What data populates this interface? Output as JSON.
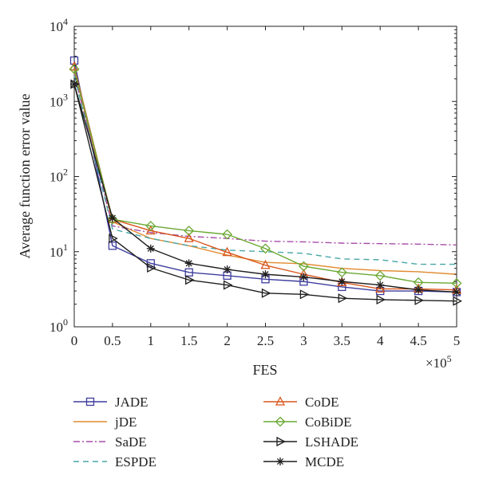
{
  "chart_data": {
    "type": "line",
    "title": "",
    "xlabel": "FES",
    "ylabel": "Average function error value",
    "x_multiplier": "×10^5",
    "x_multiplier_base": "×10",
    "x_multiplier_exp": "5",
    "xlim": [
      0,
      5
    ],
    "ylim": [
      1,
      10000
    ],
    "yscale": "log",
    "x_ticks": [
      "0",
      "0.5",
      "1",
      "1.5",
      "2",
      "2.5",
      "3",
      "3.5",
      "4",
      "4.5",
      "5"
    ],
    "y_ticks": [
      {
        "value": 1,
        "base": "10",
        "exp": "0"
      },
      {
        "value": 10,
        "base": "10",
        "exp": "1"
      },
      {
        "value": 100,
        "base": "10",
        "exp": "2"
      },
      {
        "value": 1000,
        "base": "10",
        "exp": "3"
      },
      {
        "value": 10000,
        "base": "10",
        "exp": "4"
      }
    ],
    "grid": false,
    "legend_position": "below",
    "x": [
      0,
      0.5,
      1,
      1.5,
      2,
      2.5,
      3,
      3.5,
      4,
      4.5,
      5
    ],
    "series": [
      {
        "name": "JADE",
        "color": "#3d3d9e",
        "dash": "",
        "marker": "square",
        "values": [
          3500,
          12,
          7,
          5.3,
          4.8,
          4.3,
          4.0,
          3.4,
          3.0,
          3.0,
          2.9
        ]
      },
      {
        "name": "jDE",
        "color": "#e08a2e",
        "dash": "",
        "marker": "none",
        "values": [
          2600,
          25,
          15,
          12,
          9,
          7.2,
          6.9,
          6.0,
          5.6,
          5.4,
          5.0
        ]
      },
      {
        "name": "SaDE",
        "color": "#a64da6",
        "dash": "8,3,2,3",
        "marker": "none",
        "values": [
          2300,
          22,
          18,
          16,
          15,
          13.8,
          13.5,
          13.0,
          12.8,
          12.6,
          12.3
        ]
      },
      {
        "name": "ESPDE",
        "color": "#49a6a6",
        "dash": "7,5",
        "marker": "none",
        "values": [
          2200,
          20,
          15,
          12,
          10.5,
          10,
          9.5,
          8.0,
          7.8,
          6.8,
          6.8
        ]
      },
      {
        "name": "CoDE",
        "color": "#d9561c",
        "dash": "",
        "marker": "triangle-up",
        "values": [
          2900,
          27,
          19,
          15,
          9.8,
          6.6,
          5.0,
          3.9,
          3.2,
          3.2,
          3.1
        ]
      },
      {
        "name": "CoBiDE",
        "color": "#6aa832",
        "dash": "",
        "marker": "diamond",
        "values": [
          2700,
          27,
          22,
          19,
          17,
          11,
          6.4,
          5.3,
          4.8,
          3.9,
          3.8
        ]
      },
      {
        "name": "LSHADE",
        "color": "#1e1e1e",
        "dash": "",
        "marker": "triangle-right",
        "values": [
          1700,
          15,
          6.1,
          4.2,
          3.6,
          2.8,
          2.7,
          2.4,
          2.3,
          2.25,
          2.2
        ]
      },
      {
        "name": "MCDE",
        "color": "#1e1e1e",
        "dash": "",
        "marker": "star",
        "values": [
          1700,
          28,
          11,
          7,
          5.8,
          5.0,
          4.6,
          4.0,
          3.6,
          3.1,
          2.9
        ]
      }
    ]
  }
}
